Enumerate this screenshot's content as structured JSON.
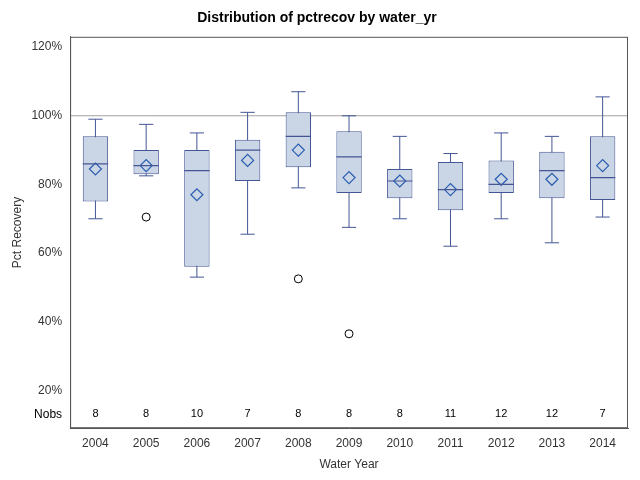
{
  "chart_data": {
    "type": "box",
    "title": "Distribution of pctrecov by water_yr",
    "x_label": "Water Year",
    "y_label": "Pct Recovery",
    "categories": [
      "2004",
      "2005",
      "2006",
      "2007",
      "2008",
      "2009",
      "2010",
      "2011",
      "2012",
      "2013",
      "2014"
    ],
    "min": [
      70,
      82.5,
      53,
      65.5,
      79,
      67.5,
      70,
      62,
      70,
      63,
      70.5
    ],
    "q1": [
      75,
      83,
      56,
      81,
      85,
      77.5,
      76,
      72.5,
      77.5,
      76,
      75.5
    ],
    "median": [
      86,
      85.5,
      84,
      90,
      94,
      88,
      81,
      78.5,
      80,
      84,
      82
    ],
    "q3": [
      94,
      90,
      90,
      93,
      101,
      95.5,
      84.5,
      86.5,
      87,
      89.5,
      94
    ],
    "max": [
      99,
      97.5,
      95,
      101,
      107,
      100,
      94,
      89,
      95,
      94,
      105.5
    ],
    "mean": [
      84.5,
      85.5,
      77,
      87,
      90,
      82,
      81,
      78.5,
      81.5,
      81.5,
      85.5
    ],
    "outliers": [
      [],
      [
        70.5
      ],
      [],
      [],
      [
        52.5
      ],
      [
        36.5
      ],
      [],
      [],
      [],
      [],
      []
    ],
    "nobs_label": "Nobs",
    "nobs": [
      8,
      8,
      10,
      7,
      8,
      8,
      8,
      11,
      12,
      12,
      7
    ],
    "reference_line": 100,
    "color": "#cad5e5",
    "ylim": [
      9,
      123
    ],
    "yticks": [
      {
        "value": 20,
        "label": "20%"
      },
      {
        "value": 40,
        "label": "40%"
      },
      {
        "value": 60,
        "label": "60%"
      },
      {
        "value": 80,
        "label": "80%"
      },
      {
        "value": 100,
        "label": "100%"
      },
      {
        "value": 120,
        "label": "120%"
      }
    ],
    "grid": false
  }
}
